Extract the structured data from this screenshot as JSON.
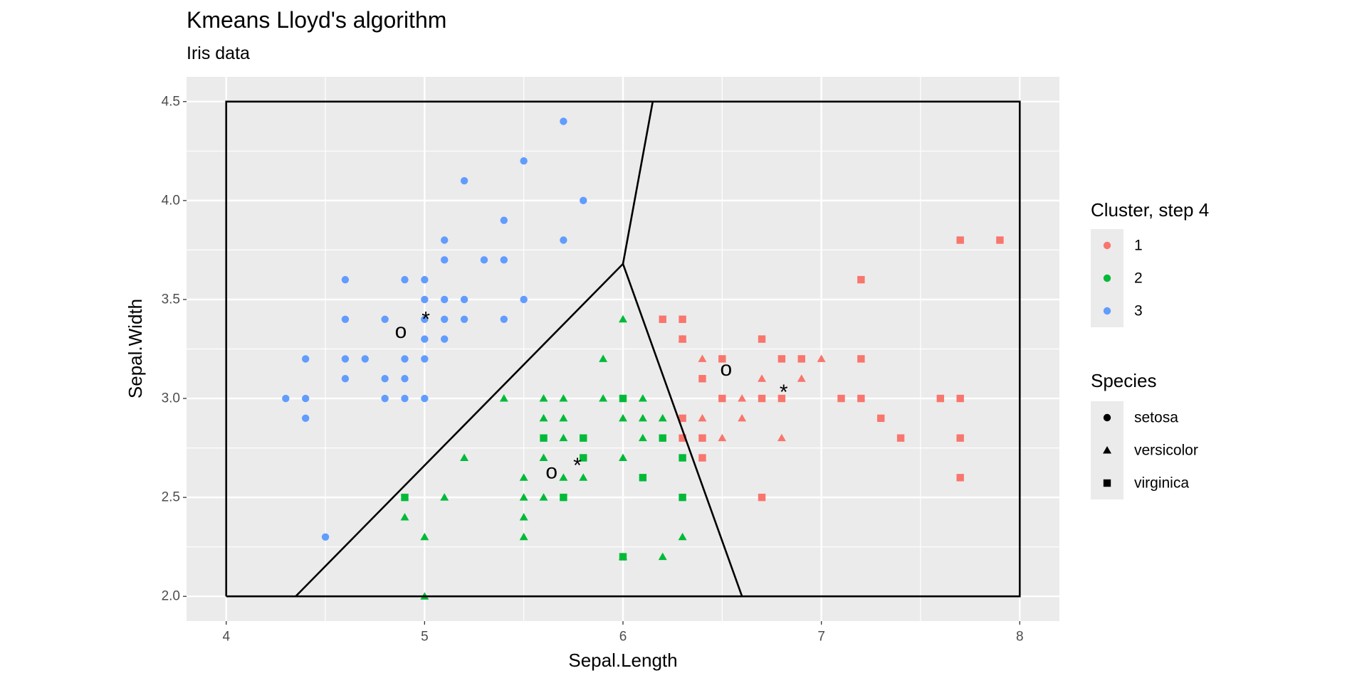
{
  "chart_data": {
    "type": "scatter",
    "title": "Kmeans Lloyd's algorithm",
    "subtitle": "Iris data",
    "x_label": "Sepal.Length",
    "y_label": "Sepal.Width",
    "xlim": [
      3.8,
      8.2
    ],
    "ylim": [
      1.875,
      4.625
    ],
    "xticks": [
      4,
      5,
      6,
      7,
      8
    ],
    "yticks": [
      {
        "value": 2,
        "label": "2.0"
      },
      {
        "value": 2.5,
        "label": "2.5"
      },
      {
        "value": 3,
        "label": "3.0"
      },
      {
        "value": 3.5,
        "label": "3.5"
      },
      {
        "value": 4,
        "label": "4.0"
      },
      {
        "value": 4.5,
        "label": "4.5"
      }
    ],
    "grid": true,
    "minor_grid": true,
    "legend_position": "right",
    "legend_title": "Cluster, step  4",
    "shape_legend": {
      "title": "Species",
      "items": [
        "setosa",
        "versicolor",
        "virginica"
      ],
      "shapes": [
        "circle",
        "triangle",
        "square"
      ]
    },
    "series": [
      {
        "name": "1",
        "color": "#F8766D",
        "x": [
          7.7,
          7.9,
          7.2,
          6.2,
          6.3,
          6.3,
          6.7,
          6.5,
          6.8,
          6.9,
          7.2,
          6.4,
          6.5,
          6.7,
          6.8,
          7.1,
          7.2,
          7.6,
          7.7,
          6.3,
          7.3,
          6.3,
          6.4,
          7.4,
          7.7,
          6.4,
          7.7,
          6.7,
          6.4,
          7.0,
          6.6,
          6.7,
          6.9,
          6.3,
          6.4,
          6.6,
          6.5,
          6.8
        ],
        "values": [
          3.8,
          3.8,
          3.6,
          3.4,
          3.4,
          3.3,
          3.3,
          3.2,
          3.2,
          3.2,
          3.2,
          3.1,
          3.0,
          3.0,
          3.0,
          3.0,
          3.0,
          3.0,
          3.0,
          2.9,
          2.9,
          2.8,
          2.8,
          2.8,
          2.8,
          2.7,
          2.6,
          2.5,
          3.2,
          3.2,
          3.0,
          3.1,
          3.1,
          3.3,
          2.9,
          2.9,
          2.8,
          2.8
        ],
        "species": [
          "virginica",
          "virginica",
          "virginica",
          "virginica",
          "virginica",
          "virginica",
          "virginica",
          "virginica",
          "virginica",
          "virginica",
          "virginica",
          "virginica",
          "virginica",
          "virginica",
          "virginica",
          "virginica",
          "virginica",
          "virginica",
          "virginica",
          "virginica",
          "virginica",
          "virginica",
          "virginica",
          "virginica",
          "virginica",
          "virginica",
          "virginica",
          "virginica",
          "versicolor",
          "versicolor",
          "versicolor",
          "versicolor",
          "versicolor",
          "versicolor",
          "versicolor",
          "versicolor",
          "versicolor",
          "versicolor"
        ]
      },
      {
        "name": "2",
        "color": "#00BA38",
        "x": [
          6.0,
          5.9,
          5.4,
          5.6,
          5.7,
          5.9,
          6.1,
          5.6,
          5.7,
          6.0,
          6.1,
          6.2,
          5.7,
          6.1,
          5.2,
          5.6,
          6.0,
          5.5,
          5.7,
          5.8,
          5.1,
          5.5,
          5.6,
          4.9,
          5.5,
          5.0,
          5.5,
          6.3,
          6.0,
          6.2,
          5.0,
          6.0,
          5.6,
          5.8,
          6.2,
          5.8,
          6.3,
          6.1,
          4.9,
          5.7,
          6.3,
          6.0
        ],
        "values": [
          3.4,
          3.2,
          3.0,
          3.0,
          3.0,
          3.0,
          3.0,
          2.9,
          2.9,
          2.9,
          2.9,
          2.9,
          2.8,
          2.8,
          2.7,
          2.7,
          2.7,
          2.6,
          2.6,
          2.6,
          2.5,
          2.5,
          2.5,
          2.4,
          2.4,
          2.3,
          2.3,
          2.3,
          2.2,
          2.2,
          2.0,
          3.0,
          2.8,
          2.8,
          2.8,
          2.7,
          2.7,
          2.6,
          2.5,
          2.5,
          2.5,
          2.2
        ],
        "species": [
          "versicolor",
          "versicolor",
          "versicolor",
          "versicolor",
          "versicolor",
          "versicolor",
          "versicolor",
          "versicolor",
          "versicolor",
          "versicolor",
          "versicolor",
          "versicolor",
          "versicolor",
          "versicolor",
          "versicolor",
          "versicolor",
          "versicolor",
          "versicolor",
          "versicolor",
          "versicolor",
          "versicolor",
          "versicolor",
          "versicolor",
          "versicolor",
          "versicolor",
          "versicolor",
          "versicolor",
          "versicolor",
          "versicolor",
          "versicolor",
          "versicolor",
          "virginica",
          "virginica",
          "virginica",
          "virginica",
          "virginica",
          "virginica",
          "virginica",
          "virginica",
          "virginica",
          "virginica",
          "virginica"
        ]
      },
      {
        "name": "3",
        "color": "#619CFF",
        "x": [
          5.7,
          5.5,
          5.2,
          5.8,
          5.4,
          5.1,
          5.7,
          5.1,
          5.3,
          5.4,
          4.6,
          4.9,
          5.0,
          5.0,
          5.1,
          5.2,
          5.5,
          4.6,
          4.8,
          5.0,
          5.1,
          5.2,
          5.4,
          5.0,
          5.1,
          4.4,
          4.6,
          4.7,
          4.9,
          5.0,
          4.6,
          4.8,
          4.9,
          4.3,
          4.4,
          4.8,
          4.9,
          5.0,
          4.4,
          4.5
        ],
        "values": [
          4.4,
          4.2,
          4.1,
          4.0,
          3.9,
          3.8,
          3.8,
          3.7,
          3.7,
          3.7,
          3.6,
          3.6,
          3.6,
          3.5,
          3.5,
          3.5,
          3.5,
          3.4,
          3.4,
          3.4,
          3.4,
          3.4,
          3.4,
          3.3,
          3.3,
          3.2,
          3.2,
          3.2,
          3.2,
          3.2,
          3.1,
          3.1,
          3.1,
          3.0,
          3.0,
          3.0,
          3.0,
          3.0,
          2.9,
          2.3
        ],
        "species": [
          "setosa",
          "setosa",
          "setosa",
          "setosa",
          "setosa",
          "setosa",
          "setosa",
          "setosa",
          "setosa",
          "setosa",
          "setosa",
          "setosa",
          "setosa",
          "setosa",
          "setosa",
          "setosa",
          "setosa",
          "setosa",
          "setosa",
          "setosa",
          "setosa",
          "setosa",
          "setosa",
          "setosa",
          "setosa",
          "setosa",
          "setosa",
          "setosa",
          "setosa",
          "setosa",
          "setosa",
          "setosa",
          "setosa",
          "setosa",
          "setosa",
          "setosa",
          "setosa",
          "setosa",
          "setosa",
          "setosa"
        ]
      }
    ],
    "centers": [
      {
        "label": "o",
        "x": [
          4.88,
          5.64,
          6.52
        ],
        "y": [
          3.34,
          2.63,
          3.15
        ]
      },
      {
        "label": "*",
        "x": [
          5.006,
          5.77,
          6.81
        ],
        "y": [
          3.4,
          2.66,
          3.03
        ]
      }
    ],
    "box": {
      "x": [
        4,
        8,
        8,
        4,
        4
      ],
      "y": [
        2,
        2,
        4.5,
        4.5,
        2
      ]
    },
    "segments": [
      {
        "x": [
          4.35,
          6.0
        ],
        "y": [
          2.0,
          3.68
        ]
      },
      {
        "x": [
          6.0,
          6.15
        ],
        "y": [
          3.68,
          4.5
        ]
      },
      {
        "x": [
          6.0,
          6.6
        ],
        "y": [
          3.68,
          2.0
        ]
      }
    ]
  }
}
